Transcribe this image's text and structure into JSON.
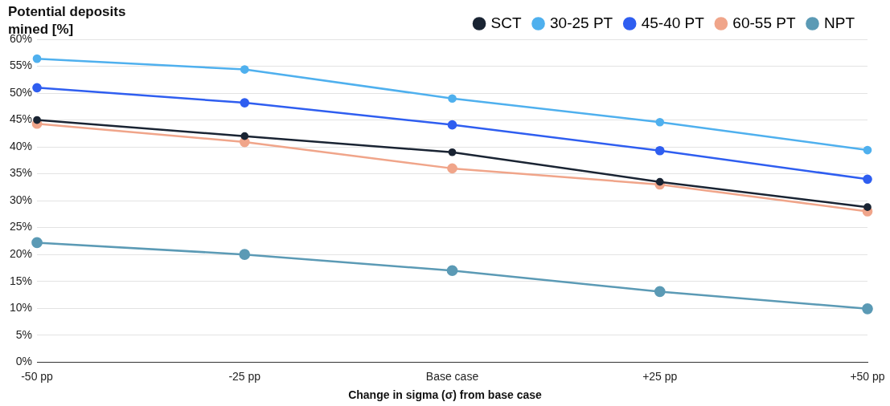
{
  "chart_data": {
    "type": "line",
    "title": "Potential deposits mined [%]",
    "xlabel": "Change in sigma (σ) from base case",
    "categories": [
      "-50 pp",
      "-25 pp",
      "Base case",
      "+25 pp",
      "+50 pp"
    ],
    "series": [
      {
        "name": "SCT",
        "color": "#1a2433",
        "values": [
          45,
          42,
          39,
          33.5,
          28.8
        ]
      },
      {
        "name": "30-25 PT",
        "color": "#4fb0ee",
        "values": [
          56.4,
          54.4,
          49,
          44.6,
          39.4
        ]
      },
      {
        "name": "45-40 PT",
        "color": "#2f5ef0",
        "values": [
          51,
          48.2,
          44.1,
          39.3,
          34
        ]
      },
      {
        "name": "60-55 PT",
        "color": "#f0a58a",
        "values": [
          44.3,
          40.9,
          36,
          33,
          28
        ]
      },
      {
        "name": "NPT",
        "color": "#5b9ab5",
        "values": [
          22.2,
          20,
          17,
          13.1,
          9.9
        ]
      }
    ],
    "ylim": [
      0,
      60
    ],
    "yticks": [
      {
        "value": 0,
        "label": "0%"
      },
      {
        "value": 5,
        "label": "5%"
      },
      {
        "value": 10,
        "label": "10%"
      },
      {
        "value": 15,
        "label": "15%"
      },
      {
        "value": 20,
        "label": "20%"
      },
      {
        "value": 25,
        "label": "25%"
      },
      {
        "value": 30,
        "label": "30%"
      },
      {
        "value": 35,
        "label": "35%"
      },
      {
        "value": 40,
        "label": "40%"
      },
      {
        "value": 45,
        "label": "45%"
      },
      {
        "value": 50,
        "label": "50%"
      },
      {
        "value": 55,
        "label": "55%"
      },
      {
        "value": 60,
        "label": "60%"
      }
    ],
    "grid": "y",
    "legend": "top right",
    "marker": "circle",
    "line_style": "solid"
  }
}
